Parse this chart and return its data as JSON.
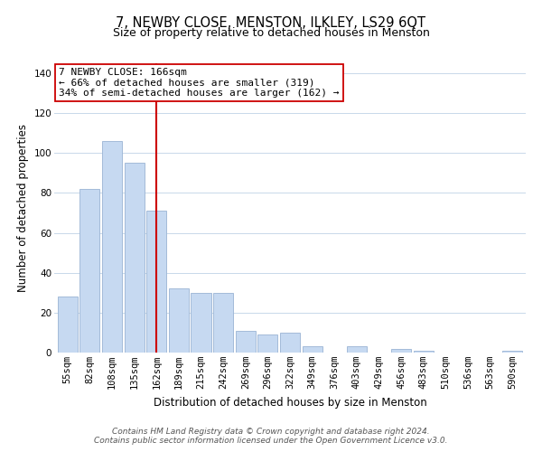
{
  "title": "7, NEWBY CLOSE, MENSTON, ILKLEY, LS29 6QT",
  "subtitle": "Size of property relative to detached houses in Menston",
  "xlabel": "Distribution of detached houses by size in Menston",
  "ylabel": "Number of detached properties",
  "categories": [
    "55sqm",
    "82sqm",
    "108sqm",
    "135sqm",
    "162sqm",
    "189sqm",
    "215sqm",
    "242sqm",
    "269sqm",
    "296sqm",
    "322sqm",
    "349sqm",
    "376sqm",
    "403sqm",
    "429sqm",
    "456sqm",
    "483sqm",
    "510sqm",
    "536sqm",
    "563sqm",
    "590sqm"
  ],
  "values": [
    28,
    82,
    106,
    95,
    71,
    32,
    30,
    30,
    11,
    9,
    10,
    3,
    0,
    3,
    0,
    2,
    1,
    0,
    0,
    0,
    1
  ],
  "bar_color": "#c6d9f1",
  "bar_edge_color": "#9ab4d4",
  "vline_x_index": 4,
  "vline_color": "#cc0000",
  "annotation_line1": "7 NEWBY CLOSE: 166sqm",
  "annotation_line2": "← 66% of detached houses are smaller (319)",
  "annotation_line3": "34% of semi-detached houses are larger (162) →",
  "annotation_box_color": "#ffffff",
  "annotation_box_edge_color": "#cc0000",
  "ylim": [
    0,
    145
  ],
  "yticks": [
    0,
    20,
    40,
    60,
    80,
    100,
    120,
    140
  ],
  "footer_text": "Contains HM Land Registry data © Crown copyright and database right 2024.\nContains public sector information licensed under the Open Government Licence v3.0.",
  "bg_color": "#ffffff",
  "grid_color": "#c8d8ea",
  "title_fontsize": 10.5,
  "subtitle_fontsize": 9,
  "axis_label_fontsize": 8.5,
  "tick_fontsize": 7.5,
  "annotation_fontsize": 8,
  "footer_fontsize": 6.5
}
